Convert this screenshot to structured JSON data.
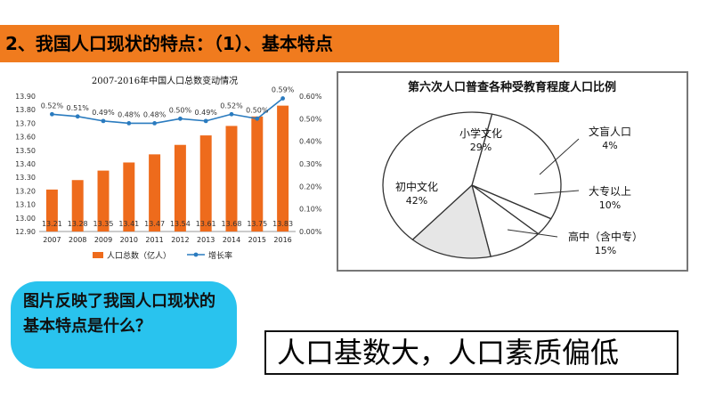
{
  "header": {
    "title": "2、我国人口现状的特点：（1）、基本特点"
  },
  "question": "图片反映了我国人口现状的基本特点是什么？",
  "answer": "人口基数大，人口素质偏低",
  "colors": {
    "header_bg": "#f07b1e",
    "bubble_bg": "#29c3ee",
    "bar": "#ee6b1c",
    "line": "#2a7bbf"
  },
  "chart_data": [
    {
      "type": "bar",
      "title": "2007-2016年中国人口总数变动情况",
      "categories": [
        "2007",
        "2008",
        "2009",
        "2010",
        "2011",
        "2012",
        "2013",
        "2014",
        "2015",
        "2016"
      ],
      "series": [
        {
          "name": "人口总数（亿人）",
          "type": "bar",
          "axis": "left",
          "values": [
            13.21,
            13.28,
            13.35,
            13.41,
            13.47,
            13.54,
            13.61,
            13.68,
            13.75,
            13.83
          ],
          "labels": [
            "13.21",
            "13.28",
            "13.35",
            "13.41",
            "13.47",
            "13.54",
            "13.61",
            "13.68",
            "13.75",
            "13.83"
          ]
        },
        {
          "name": "增长率",
          "type": "line",
          "axis": "right",
          "values": [
            0.52,
            0.51,
            0.49,
            0.48,
            0.48,
            0.5,
            0.49,
            0.52,
            0.5,
            0.59
          ],
          "labels": [
            "0.52%",
            "0.51%",
            "0.49%",
            "0.48%",
            "0.48%",
            "0.50%",
            "0.49%",
            "0.52%",
            "0.50%",
            "0.59%"
          ]
        }
      ],
      "ylim_left": [
        12.9,
        13.9
      ],
      "yticks_left": [
        "12.90",
        "13.00",
        "13.10",
        "13.20",
        "13.30",
        "13.40",
        "13.50",
        "13.60",
        "13.70",
        "13.80",
        "13.90"
      ],
      "ylim_right": [
        0,
        0.6
      ],
      "yticks_right": [
        "0.00%",
        "0.10%",
        "0.20%",
        "0.30%",
        "0.40%",
        "0.50%",
        "0.60%"
      ],
      "legend": [
        "人口总数（亿人）",
        "增长率"
      ],
      "legend_position": "bottom",
      "grid": false
    },
    {
      "type": "pie",
      "title": "第六次人口普查各种受教育程度人口比例",
      "slices": [
        {
          "label": "小学文化",
          "value_label": "29%",
          "value": 29
        },
        {
          "label": "文盲人口",
          "value_label": "4%",
          "value": 4
        },
        {
          "label": "大专以上",
          "value_label": "10%",
          "value": 10
        },
        {
          "label": "高中（含中专）",
          "value_label": "15%",
          "value": 15
        },
        {
          "label": "初中文化",
          "value_label": "42%",
          "value": 42
        }
      ]
    }
  ]
}
